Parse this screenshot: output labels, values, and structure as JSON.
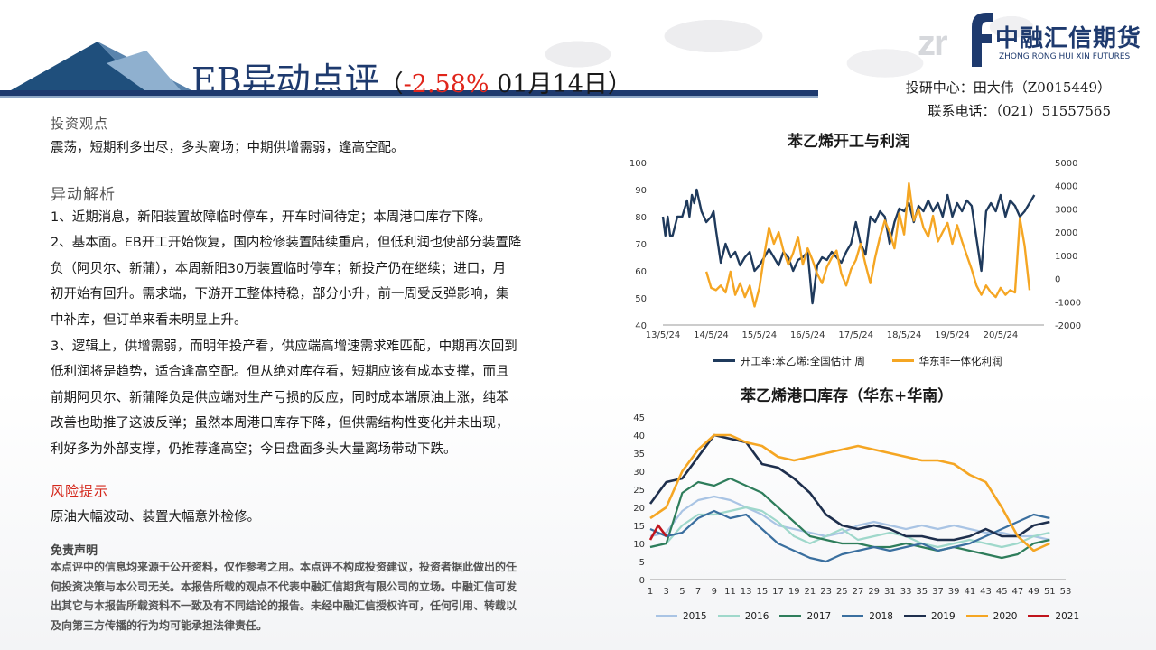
{
  "header": {
    "title_main": "EB异动点评",
    "title_open": "（",
    "title_pct": "-2.58%",
    "title_date": " 01月14日）",
    "logo_cn": "中融汇信期货",
    "logo_en": "ZHONG RONG HUI XIN FUTURES",
    "logo_mark": "zr",
    "contact_line1": "投研中心：田大伟（Z0015449）",
    "contact_line2": "联系电话：（021）51557565",
    "accent_color": "#1e3a6e"
  },
  "view": {
    "heading": "投资观点",
    "text": "震荡，短期利多出尽，多头离场；中期供增需弱，逢高空配。"
  },
  "analysis": {
    "heading": "异动解析",
    "lines": [
      "1、近期消息，新阳装置故障临时停车，开车时间待定；本周港口库存下降。",
      "2、基本面。EB开工开始恢复，国内检修装置陆续重启，但低利润也使部分装置降",
      "负（阿贝尔、新蒲），本周新阳30万装置临时停车；新投产仍在继续；进口，月",
      "初开始有回升。需求端，下游开工整体持稳，部分小升，前一周受反弹影响，集",
      "中补库，但订单来看未明显上升。",
      "3、逻辑上，供增需弱，而明年投产看，供应端高增速需求难匹配，中期再次回到",
      "低利润将是趋势，适合逢高空配。但从绝对库存看，短期应该有成本支撑，而且",
      "前期阿贝尔、新蒲降负是供应端对生产亏损的反应，同时成本端原油上涨，纯苯",
      "改善也助推了这波反弹；虽然本周港口库存下降，但供需结构性变化并未出现，",
      "利好多为外部支撑，仍推荐逢高空；今日盘面多头大量离场带动下跌。"
    ]
  },
  "risk": {
    "heading": "风险提示",
    "text": "原油大幅波动、装置大幅意外检修。"
  },
  "disclaimer": {
    "heading": "免责声明",
    "lines": [
      "本点评中的信息均来源于公开资料，仅作参考之用。本点评不构成投资建议，投资者据此做出的任",
      "何投资决策与本公司无关。本报告所载的观点不代表中融汇信期货有限公司的立场。中融汇信可发",
      "出其它与本报告所载资料不一致及有不同结论的报告。未经中融汇信授权许可，任何引用、转载以",
      "及向第三方传播的行为均可能承担法律责任。"
    ]
  },
  "chart_data": [
    {
      "type": "line",
      "title": "苯乙烯开工与利润",
      "x_tick_labels": [
        "13/5/24",
        "14/5/24",
        "15/5/24",
        "16/5/24",
        "17/5/24",
        "18/5/24",
        "19/5/24",
        "20/5/24"
      ],
      "y_left_ticks": [
        40,
        50,
        60,
        70,
        80,
        90,
        100
      ],
      "y_right_ticks": [
        -2000,
        -1000,
        0,
        1000,
        2000,
        3000,
        4000,
        5000
      ],
      "ylim_left": [
        40,
        100
      ],
      "ylim_right": [
        -2000,
        5000
      ],
      "legend_position": "bottom",
      "series": [
        {
          "name": "开工率:苯乙烯:全国估计 周",
          "axis": "left",
          "color": "#1f3a5c",
          "x": [
            0,
            0.05,
            0.1,
            0.15,
            0.2,
            0.3,
            0.4,
            0.5,
            0.55,
            0.6,
            0.65,
            0.7,
            0.8,
            0.9,
            1.0,
            1.05,
            1.1,
            1.2,
            1.3,
            1.4,
            1.5,
            1.6,
            1.7,
            1.8,
            1.9,
            2.0,
            2.1,
            2.2,
            2.3,
            2.4,
            2.5,
            2.6,
            2.7,
            2.8,
            2.9,
            3.0,
            3.1,
            3.2,
            3.3,
            3.4,
            3.5,
            3.6,
            3.7,
            3.8,
            3.9,
            4.0,
            4.1,
            4.2,
            4.3,
            4.4,
            4.5,
            4.6,
            4.7,
            4.8,
            4.9,
            5.0,
            5.1,
            5.2,
            5.3,
            5.4,
            5.5,
            5.6,
            5.7,
            5.8,
            5.9,
            6.0,
            6.1,
            6.2,
            6.3,
            6.4,
            6.5,
            6.6,
            6.7,
            6.8,
            6.9,
            7.0,
            7.1,
            7.2,
            7.3,
            7.4,
            7.5,
            7.6,
            7.7
          ],
          "values": [
            80,
            73,
            80,
            73,
            73,
            80,
            80,
            86,
            80,
            88,
            85,
            90,
            82,
            78,
            80,
            82,
            75,
            63,
            70,
            65,
            67,
            62,
            65,
            67,
            60,
            62,
            65,
            68,
            65,
            62,
            67,
            65,
            60,
            64,
            65,
            67,
            48,
            62,
            65,
            64,
            67,
            65,
            63,
            67,
            70,
            78,
            70,
            66,
            80,
            78,
            82,
            80,
            70,
            78,
            83,
            82,
            85,
            78,
            84,
            82,
            86,
            82,
            85,
            80,
            88,
            80,
            85,
            82,
            86,
            84,
            72,
            60,
            82,
            85,
            82,
            88,
            80,
            86,
            84,
            80,
            82,
            85,
            88
          ]
        },
        {
          "name": "华东非一体化利润",
          "axis": "right",
          "color": "#f5a623",
          "x": [
            0.9,
            1.0,
            1.1,
            1.2,
            1.3,
            1.4,
            1.5,
            1.6,
            1.7,
            1.8,
            1.9,
            2.0,
            2.1,
            2.2,
            2.3,
            2.4,
            2.5,
            2.6,
            2.7,
            2.8,
            2.9,
            3.0,
            3.1,
            3.2,
            3.3,
            3.4,
            3.5,
            3.6,
            3.7,
            3.8,
            3.9,
            4.0,
            4.1,
            4.2,
            4.3,
            4.4,
            4.5,
            4.6,
            4.7,
            4.8,
            4.9,
            5.0,
            5.1,
            5.2,
            5.3,
            5.4,
            5.5,
            5.6,
            5.7,
            5.8,
            5.9,
            6.0,
            6.1,
            6.2,
            6.3,
            6.4,
            6.5,
            6.6,
            6.7,
            6.8,
            6.9,
            7.0,
            7.1,
            7.2,
            7.3,
            7.4,
            7.5,
            7.6
          ],
          "values": [
            300,
            -400,
            -500,
            -300,
            -600,
            300,
            -700,
            -200,
            -800,
            -300,
            -1200,
            -400,
            1000,
            2200,
            1500,
            2000,
            1200,
            600,
            1100,
            1800,
            600,
            1300,
            800,
            200,
            -200,
            500,
            900,
            1200,
            200,
            -300,
            400,
            800,
            1500,
            600,
            -200,
            900,
            1800,
            2500,
            2000,
            1300,
            2800,
            1900,
            4100,
            2500,
            3000,
            2200,
            1800,
            2700,
            1600,
            2000,
            2400,
            1500,
            2300,
            1600,
            1000,
            400,
            -300,
            -700,
            -300,
            -600,
            -800,
            -400,
            -700,
            -500,
            -600,
            2600,
            1400,
            -500
          ]
        }
      ]
    },
    {
      "type": "line",
      "title": "苯乙烯港口库存（华东+华南）",
      "x_tick_labels": [
        "1",
        "3",
        "5",
        "7",
        "9",
        "11",
        "13",
        "15",
        "17",
        "19",
        "21",
        "23",
        "25",
        "27",
        "29",
        "31",
        "33",
        "35",
        "37",
        "39",
        "41",
        "43",
        "45",
        "47",
        "49",
        "51",
        "53"
      ],
      "y_ticks": [
        0,
        5,
        10,
        15,
        20,
        25,
        30,
        35,
        40,
        45
      ],
      "ylim": [
        0,
        45
      ],
      "legend_position": "bottom",
      "series": [
        {
          "name": "2015",
          "color": "#a9c4e4",
          "x": [
            1,
            3,
            5,
            7,
            9,
            11,
            13,
            15,
            17,
            19,
            21,
            23,
            25,
            27,
            29,
            31,
            33,
            35,
            37,
            39,
            41,
            43,
            45,
            47,
            49,
            51
          ],
          "values": [
            12,
            13,
            19,
            22,
            23,
            22,
            20,
            18,
            15,
            14,
            13,
            12,
            13,
            15,
            16,
            15,
            14,
            15,
            14,
            15,
            14,
            13,
            13,
            12,
            12,
            11
          ]
        },
        {
          "name": "2016",
          "color": "#9fd8cb",
          "x": [
            1,
            3,
            5,
            7,
            9,
            11,
            13,
            15,
            17,
            19,
            21,
            23,
            25,
            27,
            29,
            31,
            33,
            35,
            37,
            39,
            41,
            43,
            45,
            47,
            49,
            51
          ],
          "values": [
            9,
            10,
            15,
            18,
            18,
            19,
            20,
            19,
            16,
            12,
            10,
            12,
            14,
            11,
            12,
            13,
            12,
            10,
            9,
            10,
            11,
            10,
            9,
            10,
            12,
            13
          ]
        },
        {
          "name": "2017",
          "color": "#2e7d5b",
          "x": [
            1,
            3,
            5,
            7,
            9,
            11,
            13,
            15,
            17,
            19,
            21,
            23,
            25,
            27,
            29,
            31,
            33,
            35,
            37,
            39,
            41,
            43,
            45,
            47,
            49,
            51
          ],
          "values": [
            9,
            10,
            24,
            27,
            26,
            28,
            26,
            24,
            20,
            16,
            12,
            11,
            10,
            10,
            9,
            9,
            10,
            9,
            8,
            9,
            8,
            7,
            6,
            7,
            10,
            11
          ]
        },
        {
          "name": "2018",
          "color": "#3a6f9f",
          "x": [
            1,
            3,
            5,
            7,
            9,
            11,
            13,
            15,
            17,
            19,
            21,
            23,
            25,
            27,
            29,
            31,
            33,
            35,
            37,
            39,
            41,
            43,
            45,
            47,
            49,
            51
          ],
          "values": [
            14,
            12,
            13,
            17,
            19,
            17,
            18,
            14,
            10,
            8,
            6,
            5,
            7,
            8,
            9,
            8,
            9,
            10,
            8,
            9,
            10,
            12,
            14,
            16,
            18,
            17
          ]
        },
        {
          "name": "2019",
          "color": "#1e2f4d",
          "x": [
            1,
            3,
            5,
            7,
            9,
            11,
            13,
            15,
            17,
            19,
            21,
            23,
            25,
            27,
            29,
            31,
            33,
            35,
            37,
            39,
            41,
            43,
            45,
            47,
            49,
            51
          ],
          "values": [
            21,
            27,
            28,
            34,
            40,
            39,
            38,
            32,
            31,
            28,
            24,
            18,
            15,
            14,
            15,
            14,
            12,
            12,
            11,
            11,
            12,
            14,
            12,
            12,
            15,
            16
          ]
        },
        {
          "name": "2020",
          "color": "#f5a623",
          "x": [
            1,
            3,
            5,
            7,
            9,
            11,
            13,
            15,
            17,
            19,
            21,
            23,
            25,
            27,
            29,
            31,
            33,
            35,
            37,
            39,
            41,
            43,
            45,
            47,
            49,
            51
          ],
          "values": [
            17,
            20,
            30,
            36,
            40,
            40,
            38,
            37,
            34,
            33,
            34,
            35,
            36,
            37,
            36,
            35,
            34,
            33,
            33,
            32,
            29,
            27,
            20,
            12,
            8,
            10
          ]
        },
        {
          "name": "2021",
          "color": "#c0141c",
          "x": [
            1,
            2,
            3
          ],
          "values": [
            11,
            15,
            12
          ]
        }
      ]
    }
  ]
}
